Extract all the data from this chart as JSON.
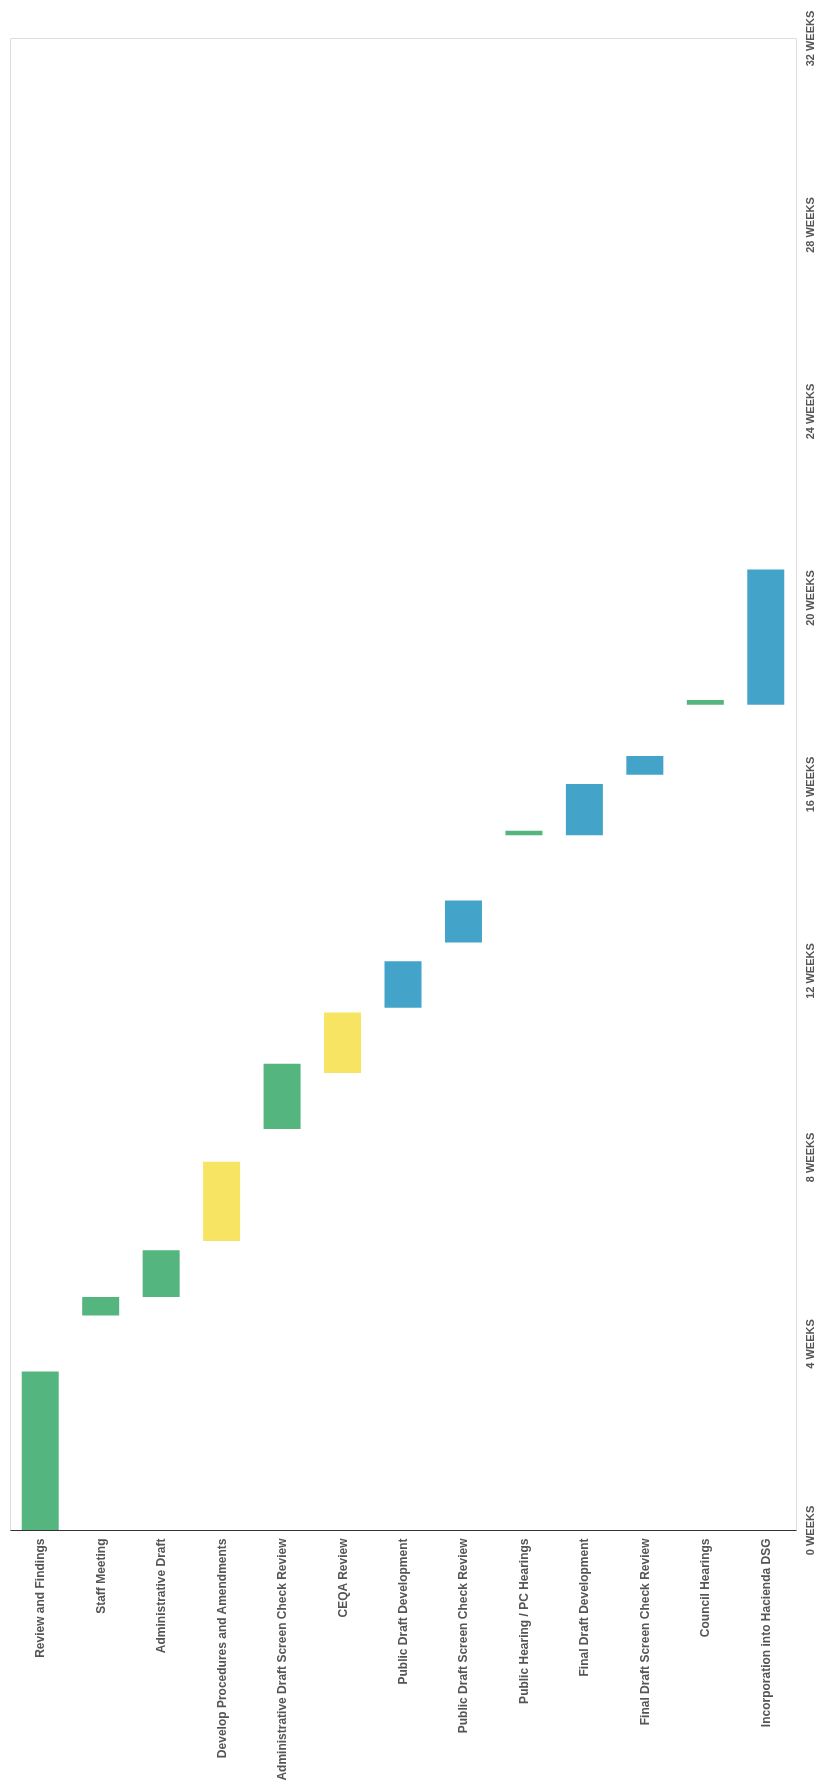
{
  "chart_data": {
    "type": "bar",
    "categories": [
      "Review and Findings",
      "Staff Meeting",
      "Administrative Draft",
      "Develop Procedures and Amendments",
      "Administrative Draft Screen Check Review",
      "CEQA Review",
      "Public Draft Development",
      "Public Draft Screen Check  Review",
      "Public Hearing / PC Hearings",
      "Final Draft Development",
      "Final Draft Screen Check Review",
      "Council Hearings",
      "Incorporation into Hacienda DSG"
    ],
    "base": [
      0,
      4.6,
      5.0,
      6.2,
      8.6,
      9.8,
      11.2,
      12.6,
      14.9,
      14.9,
      16.2,
      17.7,
      17.7
    ],
    "values": [
      3.4,
      0.4,
      1.0,
      1.7,
      1.4,
      1.3,
      1.0,
      0.9,
      0.1,
      1.1,
      0.4,
      0.1,
      2.9
    ],
    "colors": [
      "#55b57f",
      "#55b57f",
      "#55b57f",
      "#f7e463",
      "#55b57f",
      "#f7e463",
      "#43a3c8",
      "#43a3c8",
      "#55b57f",
      "#43a3c8",
      "#43a3c8",
      "#55b57f",
      "#43a3c8"
    ],
    "ylim": [
      0,
      32
    ],
    "yticks": [
      {
        "value": 0,
        "label": "0 WEEKS"
      },
      {
        "value": 4,
        "label": "4 WEEKS"
      },
      {
        "value": 8,
        "label": "8 WEEKS"
      },
      {
        "value": 12,
        "label": "12 WEEKS"
      },
      {
        "value": 16,
        "label": "16 WEEKS"
      },
      {
        "value": 20,
        "label": "20 WEEKS"
      },
      {
        "value": 24,
        "label": "24 WEEKS"
      },
      {
        "value": 28,
        "label": "28 WEEKS"
      },
      {
        "value": 32,
        "label": "32 WEEKS"
      }
    ],
    "grid": false
  }
}
